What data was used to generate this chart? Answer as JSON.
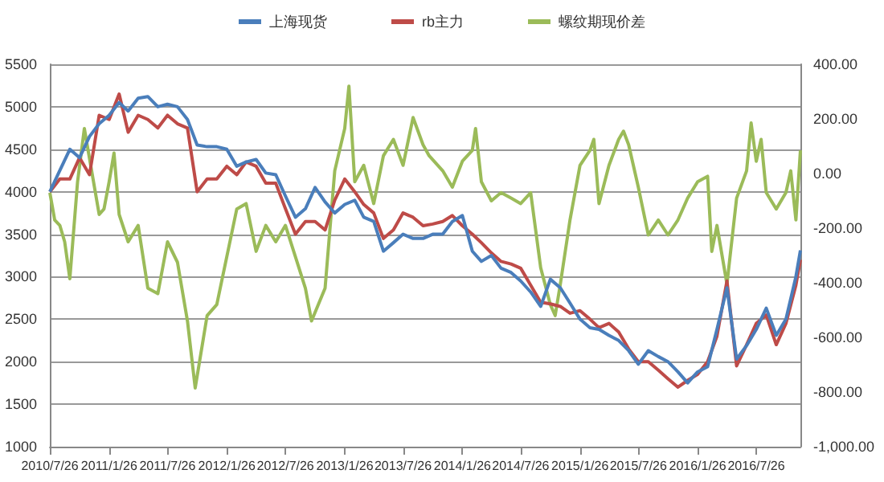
{
  "chart_data": {
    "type": "line",
    "marker": "none",
    "line_style": "solid",
    "grid": "y",
    "legend": "top",
    "x": [
      "2010-07-26",
      "2010-08-26",
      "2010-09-26",
      "2010-10-26",
      "2010-11-26",
      "2010-12-26",
      "2011-01-26",
      "2011-02-26",
      "2011-03-26",
      "2011-04-26",
      "2011-05-26",
      "2011-06-26",
      "2011-07-26",
      "2011-08-26",
      "2011-09-26",
      "2011-10-26",
      "2011-11-26",
      "2011-12-26",
      "2012-01-26",
      "2012-02-26",
      "2012-03-26",
      "2012-04-26",
      "2012-05-26",
      "2012-06-26",
      "2012-07-26",
      "2012-08-26",
      "2012-09-26",
      "2012-10-26",
      "2012-11-26",
      "2012-12-26",
      "2013-01-26",
      "2013-02-26",
      "2013-03-26",
      "2013-04-26",
      "2013-05-26",
      "2013-06-26",
      "2013-07-26",
      "2013-08-26",
      "2013-09-26",
      "2013-10-26",
      "2013-11-26",
      "2013-12-26",
      "2014-01-26",
      "2014-02-26",
      "2014-03-26",
      "2014-04-26",
      "2014-05-26",
      "2014-06-26",
      "2014-07-26",
      "2014-08-26",
      "2014-09-26",
      "2014-10-26",
      "2014-11-26",
      "2014-12-26",
      "2015-01-26",
      "2015-02-26",
      "2015-03-26",
      "2015-04-26",
      "2015-05-26",
      "2015-06-26",
      "2015-07-26",
      "2015-08-26",
      "2015-09-26",
      "2015-10-26",
      "2015-11-26",
      "2015-12-26",
      "2016-01-26",
      "2016-02-26",
      "2016-03-26",
      "2016-04-26",
      "2016-05-26",
      "2016-06-26",
      "2016-07-26",
      "2016-08-26",
      "2016-09-26",
      "2016-10-26",
      "2016-11-26",
      "2016-12-10"
    ],
    "series": [
      {
        "name": "上海现货",
        "color": "#4a7ebb",
        "values": [
          4000,
          4250,
          4500,
          4400,
          4650,
          4800,
          4900,
          5050,
          4950,
          5100,
          5120,
          5000,
          5030,
          5000,
          4850,
          4550,
          4530,
          4530,
          4500,
          4300,
          4350,
          4380,
          4220,
          4200,
          3950,
          3700,
          3800,
          4050,
          3880,
          3750,
          3850,
          3900,
          3700,
          3650,
          3300,
          3400,
          3500,
          3450,
          3450,
          3500,
          3500,
          3650,
          3720,
          3300,
          3180,
          3250,
          3100,
          3050,
          2950,
          2820,
          2650,
          2970,
          2870,
          2690,
          2500,
          2400,
          2380,
          2310,
          2250,
          2130,
          1970,
          2130,
          2060,
          2000,
          1880,
          1750,
          1880,
          1940,
          2380,
          2870,
          2030,
          2190,
          2380,
          2630,
          2310,
          2500,
          3000,
          3310
        ]
      },
      {
        "name": "rb主力",
        "color": "#be4b48",
        "values": [
          4000,
          4150,
          4150,
          4400,
          4200,
          4900,
          4850,
          5150,
          4700,
          4900,
          4850,
          4750,
          4900,
          4800,
          4750,
          4000,
          4150,
          4150,
          4300,
          4200,
          4350,
          4300,
          4100,
          4100,
          3800,
          3500,
          3650,
          3650,
          3550,
          3900,
          4150,
          4000,
          3850,
          3750,
          3450,
          3550,
          3750,
          3700,
          3600,
          3620,
          3650,
          3720,
          3600,
          3500,
          3400,
          3280,
          3180,
          3150,
          3100,
          2900,
          2700,
          2680,
          2650,
          2570,
          2600,
          2500,
          2400,
          2450,
          2350,
          2150,
          2000,
          2000,
          1900,
          1800,
          1700,
          1780,
          1850,
          2000,
          2300,
          2950,
          1950,
          2200,
          2450,
          2550,
          2200,
          2450,
          2900,
          3200
        ]
      },
      {
        "name": "螺纹期现价差",
        "color": "#9bbb59",
        "axis": "y2",
        "x": [
          "2010-07-26",
          "2010-08-10",
          "2010-08-26",
          "2010-09-10",
          "2010-09-26",
          "2010-10-20",
          "2010-11-10",
          "2010-12-26",
          "2011-01-10",
          "2011-01-26",
          "2011-02-10",
          "2011-02-26",
          "2011-03-26",
          "2011-04-26",
          "2011-05-26",
          "2011-06-26",
          "2011-07-26",
          "2011-08-26",
          "2011-09-26",
          "2011-10-20",
          "2011-11-26",
          "2011-12-26",
          "2012-01-26",
          "2012-02-26",
          "2012-03-26",
          "2012-04-26",
          "2012-05-26",
          "2012-06-26",
          "2012-07-26",
          "2012-08-26",
          "2012-09-26",
          "2012-10-15",
          "2012-11-26",
          "2012-12-26",
          "2013-01-26",
          "2013-02-08",
          "2013-02-26",
          "2013-03-26",
          "2013-04-26",
          "2013-05-26",
          "2013-06-26",
          "2013-07-26",
          "2013-08-26",
          "2013-09-26",
          "2013-10-15",
          "2013-11-26",
          "2013-12-26",
          "2014-01-26",
          "2014-02-26",
          "2014-03-08",
          "2014-03-26",
          "2014-04-26",
          "2014-05-26",
          "2014-06-26",
          "2014-07-26",
          "2014-08-26",
          "2014-09-26",
          "2014-10-26",
          "2014-11-10",
          "2014-11-26",
          "2014-12-26",
          "2015-01-26",
          "2015-02-26",
          "2015-03-10",
          "2015-03-26",
          "2015-04-26",
          "2015-05-26",
          "2015-06-10",
          "2015-06-26",
          "2015-07-26",
          "2015-08-26",
          "2015-09-26",
          "2015-10-26",
          "2015-11-26",
          "2015-12-26",
          "2016-01-26",
          "2016-02-26",
          "2016-03-10",
          "2016-03-26",
          "2016-04-26",
          "2016-05-26",
          "2016-06-26",
          "2016-07-10",
          "2016-07-26",
          "2016-08-10",
          "2016-08-26",
          "2016-09-26",
          "2016-10-26",
          "2016-11-10",
          "2016-11-26",
          "2016-12-10"
        ],
        "values": [
          -70,
          -170,
          -190,
          -250,
          -385,
          -30,
          165,
          -150,
          -130,
          -30,
          75,
          -150,
          -250,
          -190,
          -420,
          -440,
          -250,
          -325,
          -540,
          -785,
          -520,
          -480,
          -305,
          -130,
          -110,
          -285,
          -190,
          -250,
          -190,
          -305,
          -420,
          -540,
          -420,
          10,
          165,
          320,
          -30,
          30,
          -110,
          65,
          125,
          30,
          205,
          105,
          65,
          10,
          -50,
          45,
          85,
          165,
          -30,
          -100,
          -70,
          -90,
          -110,
          -70,
          -345,
          -480,
          -520,
          -405,
          -170,
          30,
          85,
          125,
          -110,
          30,
          125,
          155,
          105,
          -50,
          -225,
          -170,
          -225,
          -170,
          -90,
          -30,
          -10,
          -285,
          -190,
          -405,
          -90,
          10,
          185,
          45,
          125,
          -70,
          -130,
          -70,
          10,
          -170,
          85
        ]
      }
    ],
    "xlim": [
      "2010-07-26",
      "2016-12-10"
    ],
    "xticks": [
      {
        "value": "2010-07-26",
        "label": "2010/7/26"
      },
      {
        "value": "2011-01-26",
        "label": "2011/1/26"
      },
      {
        "value": "2011-07-26",
        "label": "2011/7/26"
      },
      {
        "value": "2012-01-26",
        "label": "2012/1/26"
      },
      {
        "value": "2012-07-26",
        "label": "2012/7/26"
      },
      {
        "value": "2013-01-26",
        "label": "2013/1/26"
      },
      {
        "value": "2013-07-26",
        "label": "2013/7/26"
      },
      {
        "value": "2014-01-26",
        "label": "2014/1/26"
      },
      {
        "value": "2014-07-26",
        "label": "2014/7/26"
      },
      {
        "value": "2015-01-26",
        "label": "2015/1/26"
      },
      {
        "value": "2015-07-26",
        "label": "2015/7/26"
      },
      {
        "value": "2016-01-26",
        "label": "2016/1/26"
      },
      {
        "value": "2016-07-26",
        "label": "2016/7/26"
      }
    ],
    "ylim": [
      1000,
      5500
    ],
    "yticks": [
      1000,
      1500,
      2000,
      2500,
      3000,
      3500,
      4000,
      4500,
      5000,
      5500
    ],
    "y2lim": [
      -1000,
      400
    ],
    "y2ticks": [
      {
        "value": -1000,
        "label": "-1,000.00"
      },
      {
        "value": -800,
        "label": "-800.00"
      },
      {
        "value": -600,
        "label": "-600.00"
      },
      {
        "value": -400,
        "label": "-400.00"
      },
      {
        "value": -200,
        "label": "-200.00"
      },
      {
        "value": 0,
        "label": "0.00"
      },
      {
        "value": 200,
        "label": "200.00"
      },
      {
        "value": 400,
        "label": "400.00"
      }
    ]
  }
}
